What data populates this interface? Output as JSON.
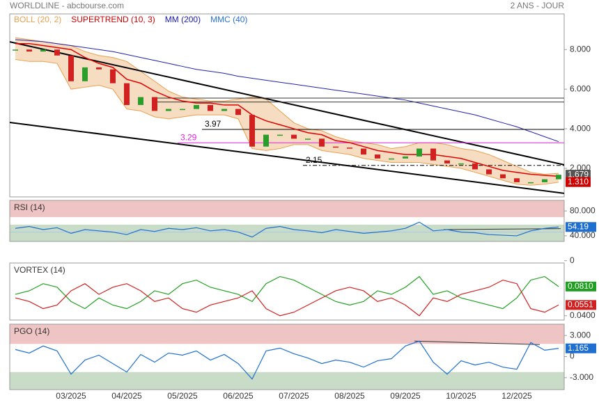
{
  "header": {
    "title": "WORLDLINE - abcbourse.com",
    "period": "2 ANS - JOUR"
  },
  "chart_data": [
    {
      "type": "candlestick",
      "legend": [
        {
          "name": "BOLL (20, 2)",
          "color": "#e8a050"
        },
        {
          "name": "SUPERTREND (10, 3)",
          "color": "#d00000"
        },
        {
          "name": "MM (200)",
          "color": "#1a1aa8"
        },
        {
          "name": "MMC (40)",
          "color": "#2a6fcf"
        }
      ],
      "ylim": [
        0.56,
        9.8
      ],
      "yticks": [
        {
          "value": 8,
          "label": "8.000"
        },
        {
          "value": 6,
          "label": "6.000"
        },
        {
          "value": 4,
          "label": "4.000"
        },
        {
          "value": 2,
          "label": "2.000"
        }
      ],
      "close": [
        8.0,
        7.9,
        8.0,
        7.7,
        6.4,
        7.1,
        7.0,
        6.3,
        5.2,
        5.6,
        4.9,
        5.0,
        5.0,
        5.2,
        4.9,
        5.0,
        4.7,
        3.1,
        3.7,
        3.7,
        3.5,
        3.5,
        3.1,
        3.05,
        3.0,
        2.7,
        2.5,
        2.5,
        2.6,
        3.0,
        2.4,
        2.25,
        2.25,
        1.95,
        1.7,
        1.5,
        1.3,
        1.3,
        1.45,
        1.679
      ],
      "up_color": "#2a9d2a",
      "down_color": "#d02020",
      "bollinger_upper": [
        8.6,
        8.5,
        8.4,
        8.3,
        8.2,
        7.9,
        7.7,
        7.6,
        7.4,
        6.9,
        6.4,
        5.9,
        5.6,
        5.5,
        5.4,
        5.4,
        5.5,
        5.6,
        5.5,
        4.9,
        4.3,
        4.0,
        3.9,
        3.6,
        3.4,
        3.3,
        3.2,
        3.0,
        3.1,
        3.3,
        3.3,
        3.2,
        3.0,
        2.9,
        2.7,
        2.4,
        2.1,
        1.8,
        1.7,
        1.75
      ],
      "bollinger_lower": [
        7.5,
        7.4,
        7.4,
        7.3,
        6.0,
        6.1,
        6.2,
        6.0,
        5.0,
        4.9,
        4.6,
        4.5,
        4.6,
        4.7,
        4.7,
        4.7,
        4.5,
        3.0,
        2.9,
        3.0,
        3.2,
        3.2,
        2.9,
        2.8,
        2.7,
        2.5,
        2.4,
        2.3,
        2.3,
        2.3,
        2.2,
        2.1,
        2.0,
        1.8,
        1.6,
        1.4,
        1.2,
        1.15,
        1.2,
        1.3
      ],
      "bollinger_color": "#e8a050",
      "bollinger_fill": "#f6dcc0",
      "supertrend": [
        8.3,
        8.3,
        8.2,
        8.1,
        8.0,
        7.6,
        7.3,
        7.1,
        6.5,
        6.3,
        5.9,
        5.6,
        5.4,
        5.3,
        5.3,
        5.2,
        5.2,
        4.7,
        4.4,
        4.2,
        4.0,
        3.8,
        3.7,
        3.4,
        3.3,
        3.1,
        2.9,
        2.8,
        2.7,
        2.7,
        2.7,
        2.6,
        2.5,
        2.3,
        2.1,
        1.9,
        1.8,
        1.7,
        1.65,
        1.6
      ],
      "supertrend_color": "#e00000",
      "mm200": [
        8.5,
        8.45,
        8.4,
        8.3,
        8.2,
        8.1,
        8.0,
        7.9,
        7.75,
        7.6,
        7.45,
        7.3,
        7.15,
        7.0,
        6.9,
        6.8,
        6.65,
        6.55,
        6.45,
        6.35,
        6.25,
        6.15,
        6.05,
        5.95,
        5.85,
        5.75,
        5.65,
        5.55,
        5.45,
        5.3,
        5.15,
        5.0,
        4.85,
        4.7,
        4.5,
        4.3,
        4.1,
        3.85,
        3.6,
        3.35
      ],
      "mm200_color": "#2020b0",
      "trendlines": [
        {
          "y": [
            8.39,
            2.18
          ]
        },
        {
          "y": [
            4.32,
            0.74
          ]
        }
      ],
      "levels": [
        {
          "value": 5.55,
          "from": 10.05,
          "color": "#333333"
        },
        {
          "value": 5.35,
          "from": 10.05,
          "color": "#333333"
        },
        {
          "value": 3.97,
          "from": 13.4,
          "color": "#000000",
          "labeled": true
        },
        {
          "value": 3.29,
          "from": 11.65,
          "color": "#e020e0",
          "labeled": true
        },
        {
          "value": 2.15,
          "from": 20.65,
          "color": "#000000",
          "labeled": true,
          "dashed": true
        }
      ],
      "last_labels": [
        {
          "value": 1.679,
          "color": "#555555"
        },
        {
          "value": 1.31,
          "label": "1.310",
          "color": "#d00000"
        }
      ]
    },
    {
      "type": "line",
      "title": "RSI (14)",
      "ylim": [
        31,
        97
      ],
      "yticks": [
        {
          "value": 80,
          "label": "80.000"
        },
        {
          "value": 40,
          "label": "40.000"
        },
        0
      ],
      "zones": [
        {
          "from": 70,
          "to": 97,
          "color": "#efc4c4"
        },
        {
          "from": 31,
          "to": 58,
          "color": "#c8dcc8"
        }
      ],
      "midline": 46,
      "series": [
        {
          "color": "#1f6fd0",
          "values": [
            52,
            55,
            50,
            53,
            44,
            50,
            48,
            46,
            42,
            50,
            47,
            52,
            50,
            53,
            48,
            50,
            46,
            38,
            52,
            55,
            50,
            48,
            45,
            50,
            47,
            44,
            46,
            48,
            52,
            62,
            48,
            50,
            46,
            45,
            42,
            41,
            40,
            48,
            52,
            54.19
          ]
        }
      ],
      "trendline": {
        "x": [
          30.75,
          39.15
        ],
        "y": [
          50,
          51.5
        ]
      }
    },
    {
      "type": "line",
      "title": "VORTEX (14)",
      "ylim": [
        0.034,
        0.114
      ],
      "yticks": [
        {
          "value": 0.04,
          "label": "0.0400"
        }
      ],
      "series": [
        {
          "color": "#20a020",
          "last_label": "0.0810",
          "values": [
            0.07,
            0.075,
            0.085,
            0.08,
            0.06,
            0.05,
            0.065,
            0.055,
            0.05,
            0.06,
            0.075,
            0.07,
            0.085,
            0.09,
            0.08,
            0.075,
            0.07,
            0.06,
            0.085,
            0.095,
            0.09,
            0.08,
            0.07,
            0.06,
            0.055,
            0.06,
            0.075,
            0.07,
            0.08,
            0.095,
            0.07,
            0.075,
            0.065,
            0.06,
            0.055,
            0.05,
            0.065,
            0.09,
            0.095,
            0.081
          ]
        },
        {
          "color": "#d02020",
          "values": [
            0.065,
            0.06,
            0.05,
            0.055,
            0.075,
            0.085,
            0.07,
            0.08,
            0.085,
            0.075,
            0.06,
            0.065,
            0.05,
            0.045,
            0.055,
            0.06,
            0.065,
            0.075,
            0.05,
            0.04,
            0.045,
            0.055,
            0.065,
            0.075,
            0.08,
            0.075,
            0.06,
            0.065,
            0.055,
            0.04,
            0.065,
            0.06,
            0.07,
            0.075,
            0.08,
            0.09,
            0.085,
            0.05,
            0.045,
            0.0551
          ]
        }
      ]
    },
    {
      "type": "line",
      "title": "PGO (14)",
      "ylim": [
        -4.7,
        4.6
      ],
      "yticks": [
        {
          "value": 3,
          "label": "3.000"
        },
        0,
        {
          "value": -3,
          "label": "-3.000"
        }
      ],
      "zones": [
        {
          "from": 1.8,
          "to": 4.6,
          "color": "#efc4c4"
        },
        {
          "from": -4.7,
          "to": -2.2,
          "color": "#c8dcc8"
        }
      ],
      "series": [
        {
          "color": "#1f6fd0",
          "values": [
            1,
            0.5,
            1.5,
            0.8,
            -2.5,
            -0.5,
            0.2,
            -1,
            -2.2,
            0.3,
            -0.8,
            0.5,
            0.2,
            0.8,
            -0.5,
            0.3,
            -1,
            -3.2,
            0.8,
            1.2,
            0.4,
            -0.2,
            -1,
            -0.5,
            -0.8,
            -1.5,
            -0.6,
            -0.3,
            1.5,
            2.2,
            -0.8,
            -2.5,
            -0.6,
            -1.2,
            -0.8,
            -1.5,
            -1.8,
            2,
            0.9,
            1.165
          ]
        }
      ],
      "trendline": {
        "x": [
          28.65,
          37.65
        ],
        "y": [
          2.2,
          1.7
        ]
      },
      "categories": [
        null,
        null,
        null,
        null,
        "03/2025",
        null,
        null,
        null,
        "04/2025",
        null,
        null,
        null,
        "05/2025",
        null,
        null,
        null,
        "06/2025",
        null,
        null,
        null,
        "07/2025",
        null,
        null,
        null,
        "08/2025",
        null,
        null,
        null,
        "09/2025",
        null,
        null,
        null,
        "10/2025",
        null,
        null,
        null,
        "12/2025",
        null,
        null,
        null
      ]
    }
  ]
}
